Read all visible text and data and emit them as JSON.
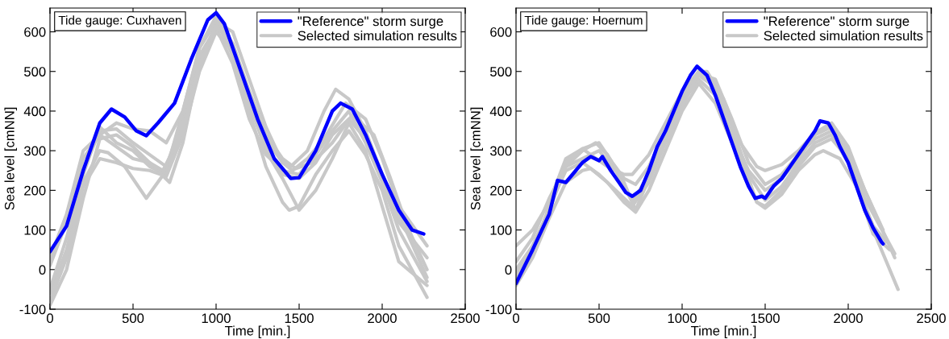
{
  "chart_data": [
    {
      "type": "line",
      "xlabel": "Time [min.]",
      "ylabel": "Sea level [cmNN]",
      "annotations": [
        "Tide gauge: Cuxhaven"
      ],
      "xlim": [
        0,
        2500
      ],
      "xticks": [
        0,
        500,
        1000,
        1500,
        2000,
        2500
      ],
      "ylim": [
        -100,
        660
      ],
      "yticks": [
        -100,
        0,
        100,
        200,
        300,
        400,
        500,
        600
      ],
      "grid": false,
      "legend": "top right",
      "marker": "none",
      "line_style": "solid",
      "series": [
        {
          "name": "\"Reference\" storm surge",
          "color": "#0000ff",
          "x": [
            0,
            100,
            200,
            300,
            370,
            450,
            520,
            580,
            650,
            750,
            850,
            950,
            1000,
            1050,
            1150,
            1250,
            1350,
            1450,
            1500,
            1600,
            1700,
            1750,
            1820,
            1900,
            2000,
            2100,
            2180,
            2250
          ],
          "values": [
            45,
            110,
            250,
            370,
            405,
            385,
            350,
            338,
            370,
            420,
            530,
            630,
            648,
            620,
            500,
            380,
            280,
            230,
            232,
            300,
            400,
            420,
            405,
            340,
            240,
            150,
            100,
            90
          ]
        },
        {
          "name": "Selected simulation results",
          "color": "#c8c8c8",
          "x": [
            0,
            100,
            200,
            300,
            400,
            500,
            600,
            700,
            800,
            900,
            1000,
            1100,
            1200,
            1300,
            1400,
            1450,
            1550,
            1650,
            1720,
            1800,
            1900,
            2000,
            2100,
            2270
          ],
          "values": [
            20,
            120,
            250,
            350,
            355,
            320,
            290,
            260,
            380,
            560,
            640,
            570,
            440,
            330,
            270,
            260,
            300,
            400,
            455,
            430,
            350,
            240,
            120,
            30
          ]
        },
        {
          "color": "#c8c8c8",
          "x": [
            0,
            100,
            200,
            300,
            350,
            450,
            580,
            700,
            800,
            900,
            1000,
            1100,
            1200,
            1300,
            1400,
            1440,
            1500,
            1600,
            1700,
            1800,
            1900,
            2000,
            2100,
            2270
          ],
          "values": [
            -60,
            50,
            220,
            300,
            295,
            260,
            180,
            250,
            400,
            560,
            630,
            540,
            400,
            260,
            170,
            150,
            160,
            240,
            300,
            350,
            290,
            200,
            60,
            -70
          ]
        },
        {
          "color": "#c8c8c8",
          "x": [
            0,
            100,
            200,
            300,
            400,
            500,
            600,
            720,
            800,
            900,
            1000,
            1100,
            1200,
            1300,
            1400,
            1500,
            1600,
            1700,
            1800,
            1900,
            2000,
            2100,
            2270
          ],
          "values": [
            -90,
            0,
            180,
            330,
            340,
            310,
            270,
            220,
            320,
            520,
            620,
            560,
            420,
            300,
            230,
            150,
            200,
            280,
            370,
            300,
            160,
            20,
            -40
          ]
        },
        {
          "color": "#c8c8c8",
          "x": [
            0,
            100,
            200,
            300,
            400,
            500,
            600,
            700,
            800,
            900,
            1000,
            1100,
            1200,
            1300,
            1400,
            1460,
            1550,
            1650,
            1780,
            1900,
            2000,
            2100,
            2270
          ],
          "values": [
            10,
            120,
            280,
            340,
            370,
            355,
            350,
            320,
            400,
            560,
            625,
            600,
            480,
            360,
            270,
            250,
            280,
            330,
            420,
            380,
            280,
            160,
            60
          ]
        },
        {
          "color": "#c8c8c8",
          "x": [
            0,
            100,
            200,
            300,
            400,
            500,
            600,
            700,
            800,
            900,
            1000,
            1100,
            1200,
            1300,
            1400,
            1500,
            1600,
            1700,
            1800,
            1900,
            2000,
            2100,
            2270
          ],
          "values": [
            -50,
            80,
            240,
            360,
            320,
            300,
            260,
            240,
            360,
            540,
            610,
            520,
            380,
            290,
            250,
            240,
            290,
            350,
            400,
            320,
            220,
            100,
            -30
          ]
        },
        {
          "color": "#c8c8c8",
          "x": [
            0,
            100,
            200,
            300,
            400,
            500,
            600,
            700,
            800,
            900,
            1000,
            1100,
            1200,
            1300,
            1400,
            1500,
            1600,
            1700,
            1800,
            1900,
            2000,
            2100,
            2270
          ],
          "values": [
            -80,
            30,
            210,
            280,
            270,
            255,
            250,
            235,
            340,
            500,
            600,
            550,
            430,
            310,
            240,
            230,
            270,
            340,
            380,
            330,
            240,
            140,
            -20
          ]
        },
        {
          "color": "#c8c8c8",
          "x": [
            0,
            100,
            200,
            300,
            400,
            500,
            600,
            680,
            800,
            900,
            1000,
            1100,
            1200,
            1300,
            1400,
            1480,
            1580,
            1700,
            1820,
            1950,
            2050,
            2150,
            2270
          ],
          "values": [
            30,
            140,
            300,
            340,
            310,
            280,
            270,
            250,
            350,
            520,
            615,
            570,
            450,
            340,
            280,
            255,
            270,
            320,
            390,
            340,
            230,
            110,
            0
          ]
        }
      ]
    },
    {
      "type": "line",
      "xlabel": "Time [min.]",
      "ylabel": "Sea level [cmNN]",
      "annotations": [
        "Tide gauge: Hoernum"
      ],
      "xlim": [
        0,
        2500
      ],
      "xticks": [
        0,
        500,
        1000,
        1500,
        2000,
        2500
      ],
      "ylim": [
        -100,
        660
      ],
      "yticks": [
        -100,
        0,
        100,
        200,
        300,
        400,
        500,
        600
      ],
      "grid": false,
      "legend": "top right",
      "marker": "none",
      "line_style": "solid",
      "series": [
        {
          "name": "\"Reference\" storm surge",
          "color": "#0000ff",
          "x": [
            0,
            100,
            200,
            250,
            300,
            350,
            400,
            450,
            500,
            520,
            570,
            620,
            660,
            700,
            750,
            800,
            850,
            900,
            950,
            1000,
            1050,
            1090,
            1150,
            1200,
            1250,
            1300,
            1350,
            1400,
            1440,
            1480,
            1500,
            1550,
            1600,
            1650,
            1700,
            1750,
            1800,
            1830,
            1880,
            1920,
            1950,
            2000,
            2050,
            2100,
            2150,
            2200,
            2210
          ],
          "values": [
            -35,
            50,
            140,
            225,
            220,
            245,
            270,
            285,
            275,
            285,
            250,
            220,
            195,
            185,
            200,
            250,
            310,
            350,
            400,
            450,
            490,
            513,
            490,
            440,
            380,
            320,
            260,
            210,
            180,
            185,
            180,
            210,
            230,
            260,
            290,
            320,
            350,
            375,
            370,
            340,
            310,
            270,
            210,
            150,
            105,
            70,
            65
          ]
        },
        {
          "name": "Selected simulation results",
          "color": "#c8c8c8",
          "x": [
            0,
            100,
            200,
            300,
            400,
            450,
            550,
            650,
            700,
            800,
            900,
            1000,
            1100,
            1150,
            1250,
            1350,
            1450,
            1500,
            1600,
            1700,
            1800,
            1900,
            2000,
            2100,
            2210
          ],
          "values": [
            60,
            100,
            170,
            280,
            305,
            290,
            260,
            240,
            240,
            290,
            370,
            450,
            500,
            500,
            430,
            320,
            260,
            250,
            265,
            300,
            345,
            370,
            310,
            200,
            100
          ]
        },
        {
          "color": "#c8c8c8",
          "x": [
            0,
            100,
            200,
            300,
            400,
            480,
            550,
            650,
            720,
            800,
            900,
            1000,
            1100,
            1200,
            1300,
            1400,
            1450,
            1500,
            1600,
            1700,
            1800,
            1900,
            2000,
            2100,
            2300
          ],
          "values": [
            0,
            60,
            150,
            260,
            300,
            320,
            290,
            220,
            150,
            230,
            340,
            430,
            490,
            460,
            330,
            230,
            170,
            160,
            200,
            260,
            310,
            330,
            280,
            150,
            -50
          ]
        },
        {
          "color": "#c8c8c8",
          "x": [
            0,
            100,
            200,
            300,
            400,
            450,
            550,
            650,
            720,
            800,
            900,
            1000,
            1100,
            1200,
            1300,
            1400,
            1450,
            1500,
            1600,
            1700,
            1800,
            1850,
            1950,
            2050,
            2150,
            2250
          ],
          "values": [
            -40,
            30,
            130,
            220,
            250,
            255,
            220,
            170,
            145,
            200,
            300,
            400,
            470,
            420,
            320,
            220,
            170,
            155,
            190,
            250,
            290,
            300,
            280,
            210,
            90,
            50
          ]
        },
        {
          "color": "#c8c8c8",
          "x": [
            0,
            100,
            200,
            300,
            400,
            500,
            580,
            650,
            720,
            800,
            900,
            1000,
            1100,
            1200,
            1300,
            1400,
            1500,
            1600,
            1700,
            1800,
            1900,
            2000,
            2100,
            2280
          ],
          "values": [
            -20,
            60,
            150,
            270,
            305,
            320,
            270,
            230,
            215,
            260,
            350,
            440,
            495,
            480,
            380,
            270,
            215,
            240,
            290,
            330,
            350,
            300,
            200,
            30
          ]
        },
        {
          "color": "#c8c8c8",
          "x": [
            0,
            100,
            200,
            300,
            400,
            500,
            600,
            700,
            800,
            900,
            1000,
            1100,
            1200,
            1300,
            1400,
            1500,
            1600,
            1700,
            1800,
            1900,
            2000,
            2100,
            2280
          ],
          "values": [
            20,
            80,
            180,
            260,
            280,
            300,
            250,
            170,
            240,
            330,
            420,
            480,
            440,
            340,
            250,
            200,
            230,
            280,
            340,
            360,
            290,
            180,
            40
          ]
        },
        {
          "color": "#c8c8c8",
          "x": [
            0,
            100,
            200,
            300,
            400,
            500,
            600,
            700,
            800,
            900,
            1000,
            1100,
            1200,
            1300,
            1400,
            1500,
            1600,
            1700,
            1800,
            1900,
            2000,
            2150,
            2230
          ],
          "values": [
            -10,
            40,
            160,
            250,
            270,
            240,
            200,
            160,
            220,
            320,
            410,
            500,
            470,
            360,
            240,
            175,
            210,
            270,
            320,
            340,
            270,
            110,
            70
          ]
        }
      ]
    }
  ]
}
